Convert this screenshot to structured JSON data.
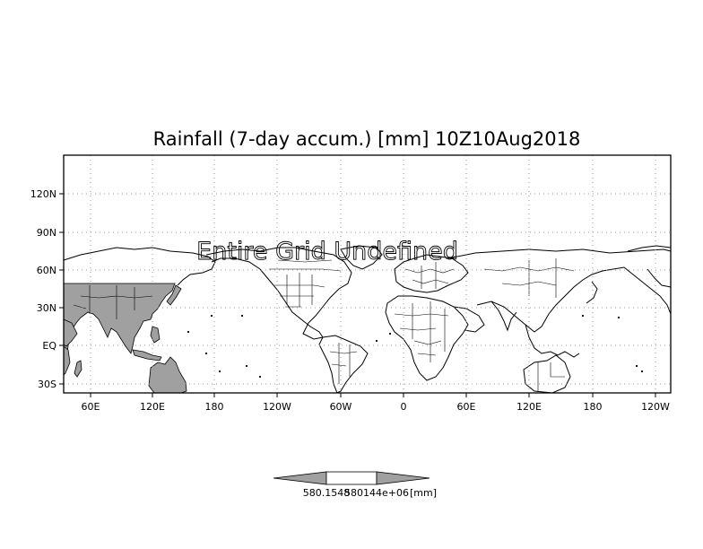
{
  "title": "Rainfall (7-day accum.) [mm] 10Z10Aug2018",
  "overlay_text": "Entire Grid Undefined",
  "lat_labels": [
    "120N",
    "90N",
    "60N",
    "30N",
    "EQ",
    "30S"
  ],
  "lon_labels": [
    "60E",
    "120E",
    "180",
    "120W",
    "60W",
    "0",
    "60E",
    "120E",
    "180",
    "120W"
  ],
  "colorbar": {
    "tick_labels": [
      "580.1548",
      "580144e+06"
    ],
    "unit": "[mm]",
    "left_color": "#a0a0a0",
    "mid_color": "#ffffff",
    "right_color": "#a0a0a0"
  },
  "colors": {
    "land_fill": "#a0a0a0",
    "coastline": "#000000",
    "grid": "#9a9a9a"
  }
}
